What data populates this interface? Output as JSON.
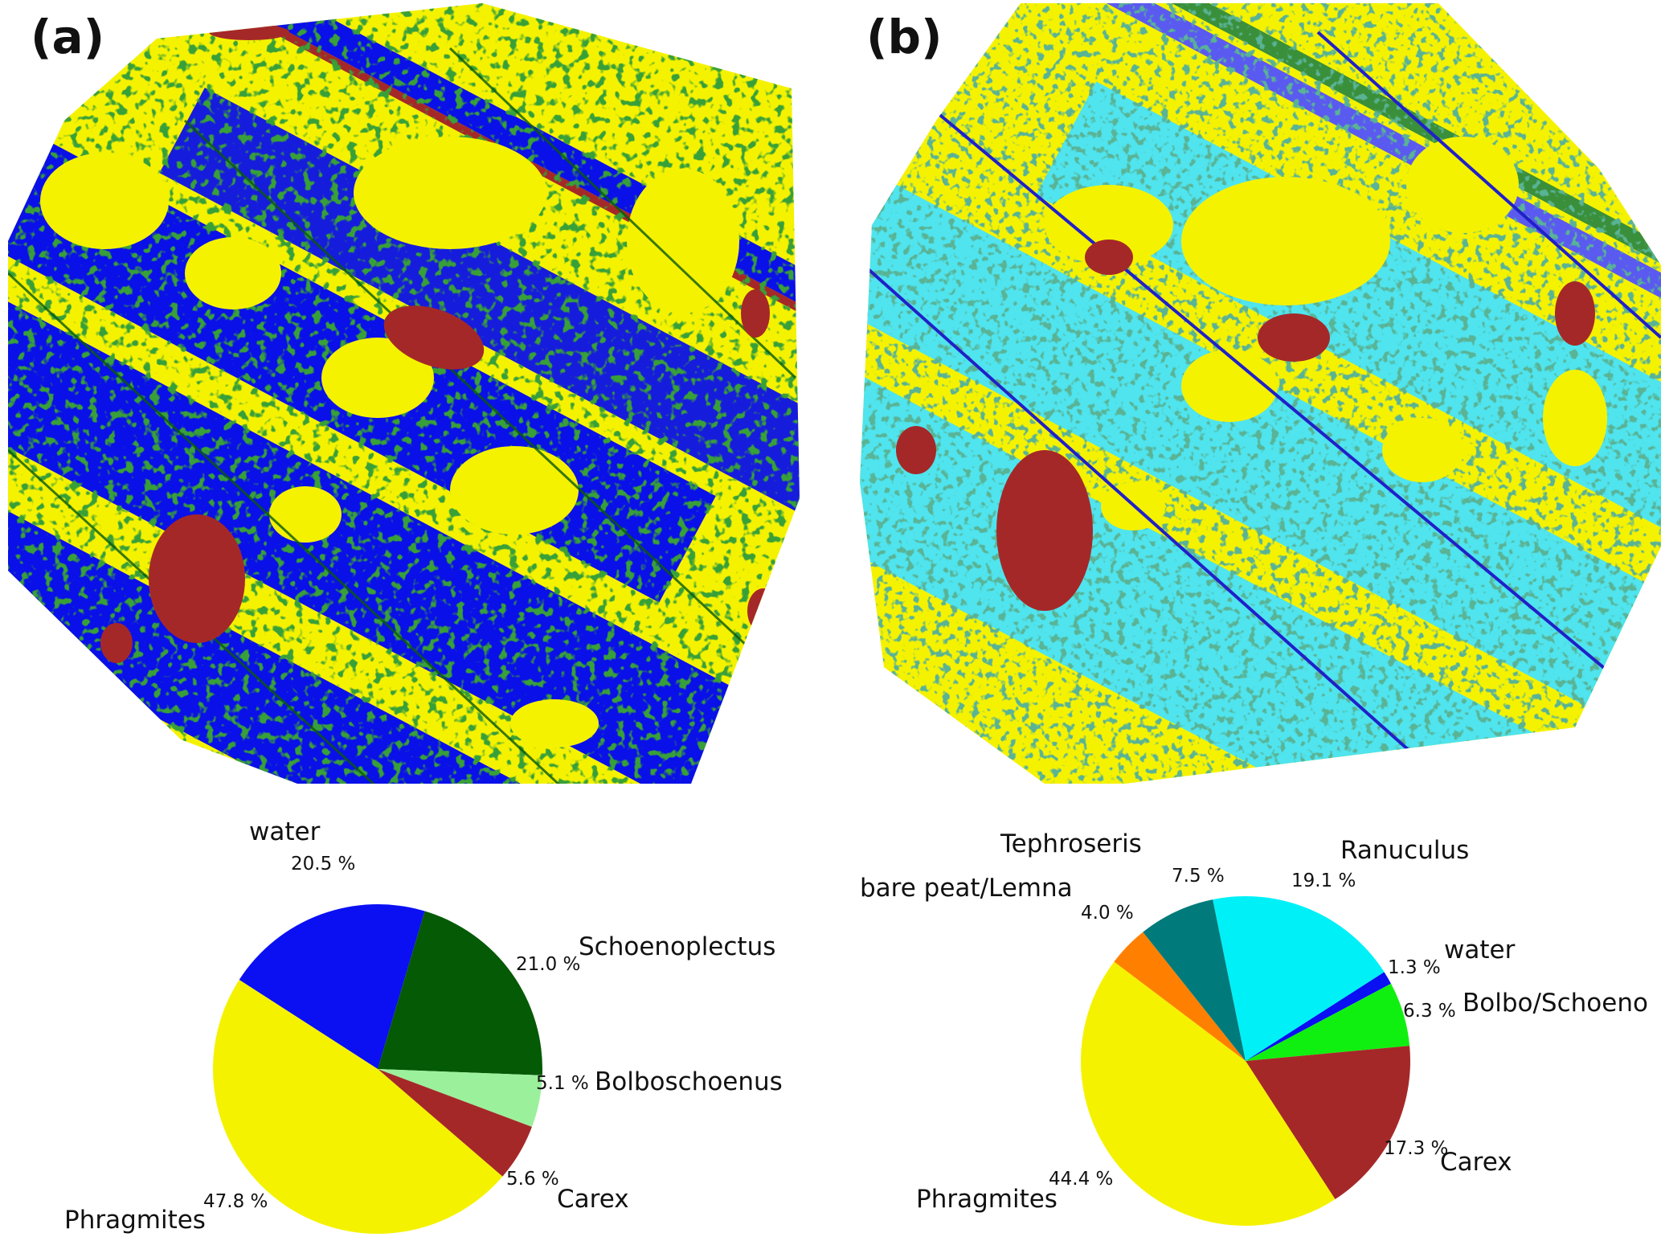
{
  "panels": [
    {
      "label": "(a)"
    },
    {
      "label": "(b)"
    }
  ],
  "map_colors": {
    "yellow": "#f5f200",
    "blue": "#0a10e8",
    "dark_green": "#0b5a0b",
    "light_green": "#9bf09b",
    "red_brown": "#a52828",
    "cyan": "#4fe4ee",
    "teal": "#2a9aa0",
    "light_blue": "#8f8ff5"
  },
  "chart_data": [
    {
      "type": "pie",
      "panel": "(a)",
      "title": "",
      "slices": [
        {
          "label": "water",
          "value": 20.5,
          "pct_label": "20.5 %",
          "color": "#0a10f2"
        },
        {
          "label": "Schoenoplectus",
          "value": 21.0,
          "pct_label": "21.0 %",
          "color": "#055a05"
        },
        {
          "label": "Bolboschoenus",
          "value": 5.1,
          "pct_label": "5.1 %",
          "color": "#9bf09b"
        },
        {
          "label": "Carex",
          "value": 5.6,
          "pct_label": "5.6 %",
          "color": "#a52828"
        },
        {
          "label": "Phragmites",
          "value": 47.8,
          "pct_label": "47.8 %",
          "color": "#f5f200"
        }
      ]
    },
    {
      "type": "pie",
      "panel": "(b)",
      "title": "",
      "slices": [
        {
          "label": "Ranuculus",
          "value": 19.1,
          "pct_label": "19.1 %",
          "color": "#00f0f8"
        },
        {
          "label": "water",
          "value": 1.3,
          "pct_label": "1.3 %",
          "color": "#0a10f2"
        },
        {
          "label": "Bolbo/Schoeno",
          "value": 6.3,
          "pct_label": "6.3 %",
          "color": "#10f010"
        },
        {
          "label": "Carex",
          "value": 17.3,
          "pct_label": "17.3 %",
          "color": "#a52828"
        },
        {
          "label": "Phragmites",
          "value": 44.4,
          "pct_label": "44.4 %",
          "color": "#f5f200"
        },
        {
          "label": "bare peat/Lemna",
          "value": 4.0,
          "pct_label": "4.0 %",
          "color": "#ff8000"
        },
        {
          "label": "Tephroseris",
          "value": 7.5,
          "pct_label": "7.5 %",
          "color": "#007a7a"
        }
      ]
    }
  ]
}
